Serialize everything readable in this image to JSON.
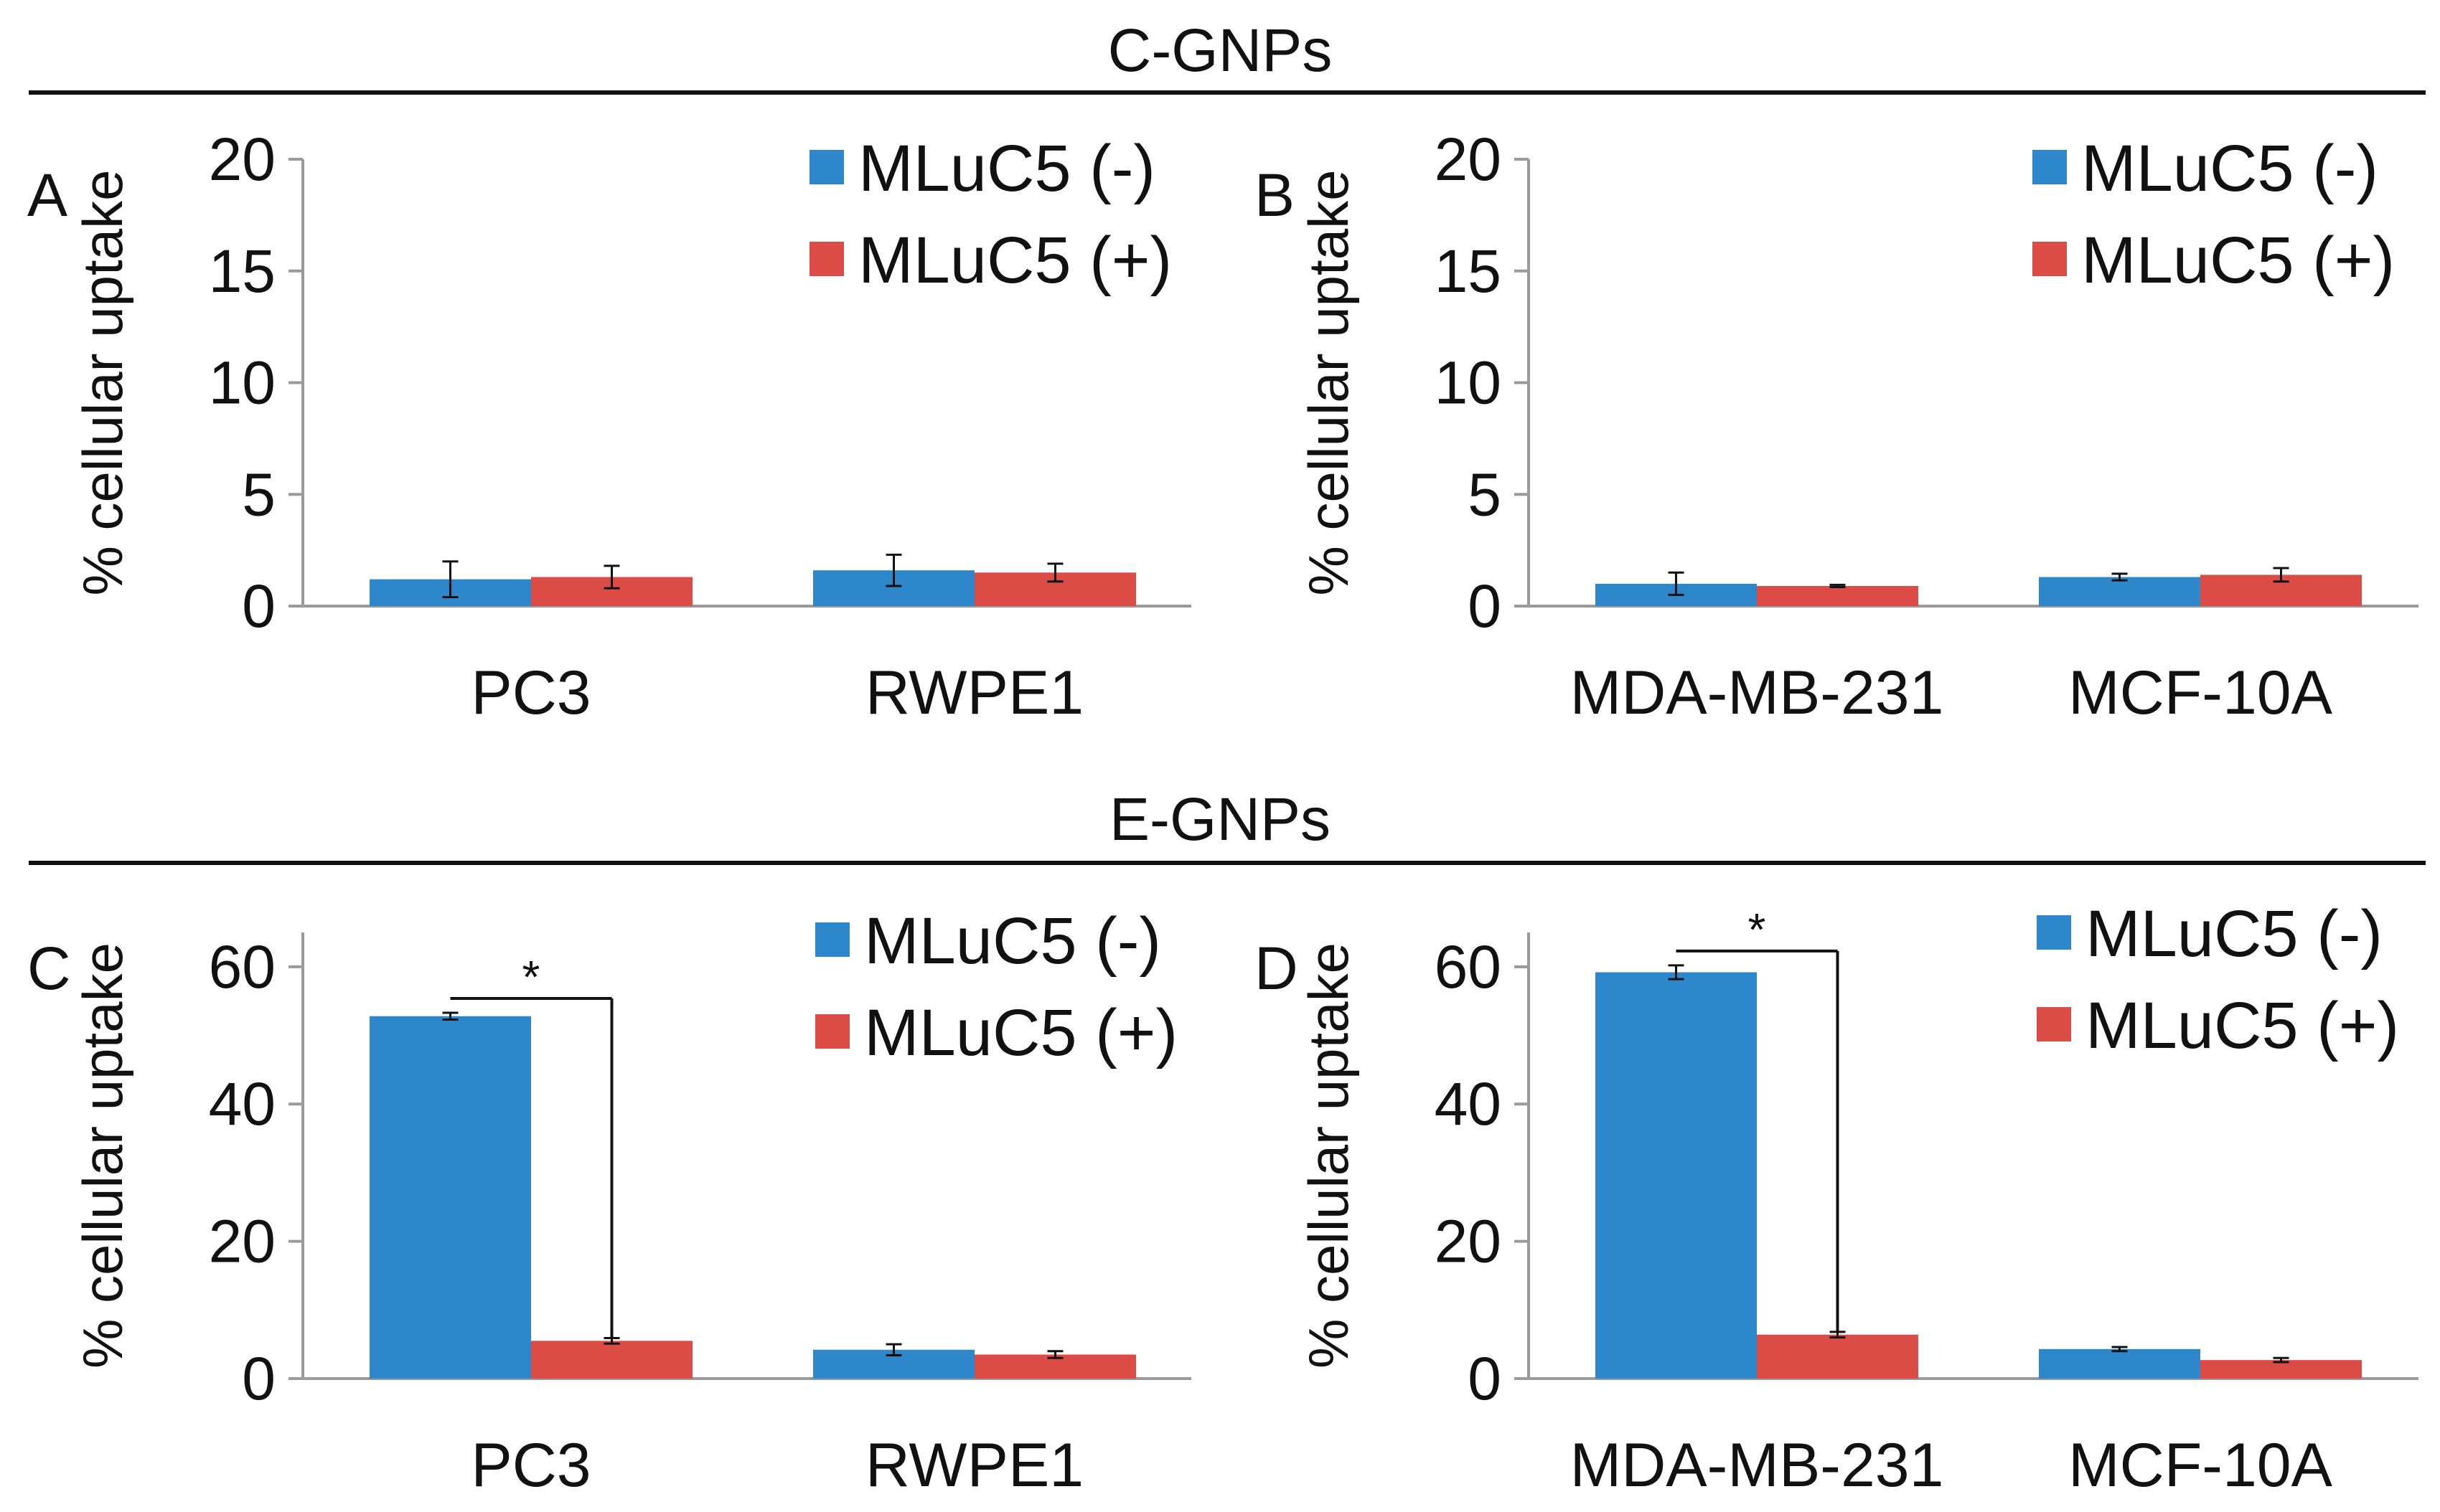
{
  "sections": [
    {
      "title": "C-GNPs"
    },
    {
      "title": "E-GNPs"
    }
  ],
  "colors": {
    "series_minus": "#2F87CB",
    "series_plus": "#DC4C46",
    "axis": "#9a9a9a",
    "ink": "#111111"
  },
  "chart_data": [
    {
      "type": "bar",
      "panel_label": "A",
      "title": "C-GNPs",
      "ylabel": "% cellular uptake",
      "ylim": [
        0,
        20
      ],
      "yticks": [
        0,
        5,
        10,
        15,
        20
      ],
      "categories": [
        "PC3",
        "RWPE1"
      ],
      "series": [
        {
          "name": "MLuC5 (-)",
          "values": [
            1.2,
            1.6
          ],
          "errors": [
            0.8,
            0.7
          ]
        },
        {
          "name": "MLuC5 (+)",
          "values": [
            1.3,
            1.5
          ],
          "errors": [
            0.5,
            0.4
          ]
        }
      ],
      "legend": "top-right",
      "significance": []
    },
    {
      "type": "bar",
      "panel_label": "B",
      "title": "C-GNPs",
      "ylabel": "% cellular uptake",
      "ylim": [
        0,
        20
      ],
      "yticks": [
        0,
        5,
        10,
        15,
        20
      ],
      "categories": [
        "MDA-MB-231",
        "MCF-10A"
      ],
      "series": [
        {
          "name": "MLuC5 (-)",
          "values": [
            1.0,
            1.3
          ],
          "errors": [
            0.5,
            0.15
          ]
        },
        {
          "name": "MLuC5 (+)",
          "values": [
            0.9,
            1.4
          ],
          "errors": [
            0.05,
            0.3
          ]
        }
      ],
      "legend": "top-right",
      "significance": []
    },
    {
      "type": "bar",
      "panel_label": "C",
      "title": "E-GNPs",
      "ylabel": "% cellular uptake",
      "ylim": [
        0,
        65
      ],
      "yticks": [
        0,
        20,
        40,
        60
      ],
      "categories": [
        "PC3",
        "RWPE1"
      ],
      "series": [
        {
          "name": "MLuC5 (-)",
          "values": [
            52.8,
            4.2
          ],
          "errors": [
            0.5,
            0.8
          ]
        },
        {
          "name": "MLuC5 (+)",
          "values": [
            5.5,
            3.5
          ],
          "errors": [
            0.4,
            0.5
          ]
        }
      ],
      "legend": "top-right",
      "significance": [
        {
          "category": 0,
          "label": "*"
        }
      ]
    },
    {
      "type": "bar",
      "panel_label": "D",
      "title": "E-GNPs",
      "ylabel": "% cellular uptake",
      "ylim": [
        0,
        65
      ],
      "yticks": [
        0,
        20,
        40,
        60
      ],
      "categories": [
        "MDA-MB-231",
        "MCF-10A"
      ],
      "series": [
        {
          "name": "MLuC5 (-)",
          "values": [
            59.2,
            4.3
          ],
          "errors": [
            1.0,
            0.3
          ]
        },
        {
          "name": "MLuC5 (+)",
          "values": [
            6.4,
            2.7
          ],
          "errors": [
            0.4,
            0.3
          ]
        }
      ],
      "legend": "top-right",
      "significance": [
        {
          "category": 0,
          "label": "*"
        }
      ]
    }
  ]
}
